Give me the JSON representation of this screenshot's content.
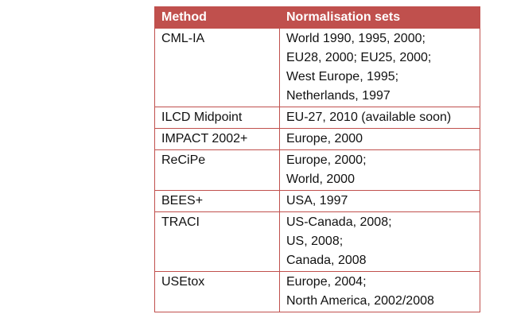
{
  "table": {
    "headers": [
      "Method",
      "Normalisation sets"
    ],
    "rows": [
      {
        "method": "CML-IA",
        "sets": [
          "World 1990, 1995, 2000;",
          "EU28, 2000; EU25, 2000;",
          "West Europe, 1995;",
          "Netherlands, 1997"
        ]
      },
      {
        "method": "ILCD Midpoint",
        "sets": [
          "EU-27, 2010 (available soon)"
        ]
      },
      {
        "method": "IMPACT 2002+",
        "sets": [
          "Europe, 2000"
        ]
      },
      {
        "method": "ReCiPe",
        "sets": [
          "Europe, 2000;",
          "World, 2000"
        ]
      },
      {
        "method": "BEES+",
        "sets": [
          "USA, 1997"
        ]
      },
      {
        "method": "TRACI",
        "sets": [
          "US-Canada, 2008;",
          "US, 2008;",
          "Canada, 2008"
        ]
      },
      {
        "method": "USEtox",
        "sets": [
          "Europe, 2004;",
          "North America, 2002/2008"
        ]
      }
    ]
  },
  "colors": {
    "accent": "#c0504d",
    "header_text": "#ffffff"
  }
}
